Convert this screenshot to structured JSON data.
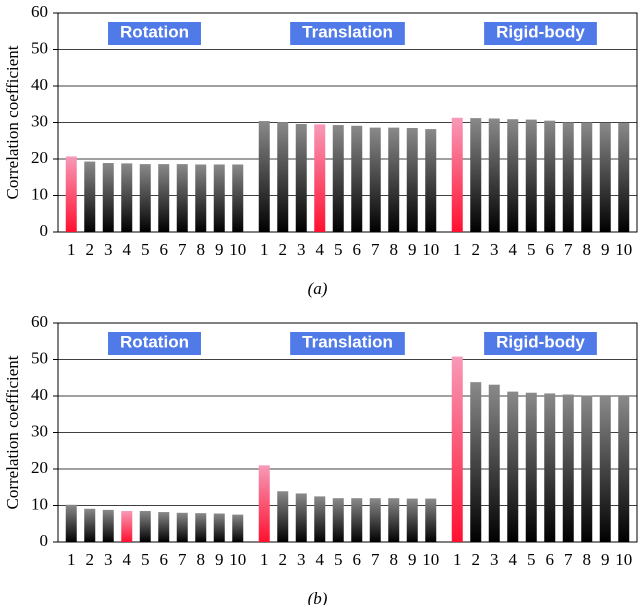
{
  "chart_data": [
    {
      "type": "bar",
      "caption": "(a)",
      "y_label": "Correlation coefficient",
      "ylim": [
        0,
        60
      ],
      "yticks": [
        0,
        10,
        20,
        30,
        40,
        50,
        60
      ],
      "grid": true,
      "color": [
        "#8a8a8a",
        "#000000"
      ],
      "highlight_color": [
        "#f79ab8",
        "#ff1030"
      ],
      "groups": [
        {
          "name": "Rotation",
          "categories": [
            "1",
            "2",
            "3",
            "4",
            "5",
            "6",
            "7",
            "8",
            "9",
            "10"
          ],
          "values": [
            20.7,
            19.3,
            18.9,
            18.8,
            18.6,
            18.6,
            18.6,
            18.5,
            18.5,
            18.5
          ],
          "highlight": 0
        },
        {
          "name": "Translation",
          "categories": [
            "1",
            "2",
            "3",
            "4",
            "5",
            "6",
            "7",
            "8",
            "9",
            "10"
          ],
          "values": [
            30.4,
            30.1,
            29.6,
            29.5,
            29.3,
            29.1,
            28.6,
            28.6,
            28.5,
            28.2
          ],
          "highlight": 3
        },
        {
          "name": "Rigid-body",
          "categories": [
            "1",
            "2",
            "3",
            "4",
            "5",
            "6",
            "7",
            "8",
            "9",
            "10"
          ],
          "values": [
            31.3,
            31.2,
            31.1,
            30.9,
            30.8,
            30.5,
            30.0,
            30.0,
            29.9,
            29.9
          ],
          "highlight": 0
        }
      ]
    },
    {
      "type": "bar",
      "caption": "(b)",
      "y_label": "Correlation coefficient",
      "ylim": [
        0,
        60
      ],
      "yticks": [
        0,
        10,
        20,
        30,
        40,
        50,
        60
      ],
      "grid": true,
      "color": [
        "#8a8a8a",
        "#000000"
      ],
      "highlight_color": [
        "#f79ab8",
        "#ff1030"
      ],
      "groups": [
        {
          "name": "Rotation",
          "categories": [
            "1",
            "2",
            "3",
            "4",
            "5",
            "6",
            "7",
            "8",
            "9",
            "10"
          ],
          "values": [
            10.2,
            9.1,
            8.8,
            8.5,
            8.5,
            8.2,
            8.0,
            7.9,
            7.8,
            7.5
          ],
          "highlight": 3
        },
        {
          "name": "Translation",
          "categories": [
            "1",
            "2",
            "3",
            "4",
            "5",
            "6",
            "7",
            "8",
            "9",
            "10"
          ],
          "values": [
            21.0,
            13.9,
            13.3,
            12.5,
            12.0,
            12.0,
            12.0,
            12.0,
            11.9,
            11.9
          ],
          "highlight": 0
        },
        {
          "name": "Rigid-body",
          "categories": [
            "1",
            "2",
            "3",
            "4",
            "5",
            "6",
            "7",
            "8",
            "9",
            "10"
          ],
          "values": [
            50.8,
            43.8,
            43.1,
            41.2,
            40.9,
            40.7,
            40.4,
            40.1,
            40.0,
            40.0
          ],
          "highlight": 0
        }
      ]
    }
  ]
}
